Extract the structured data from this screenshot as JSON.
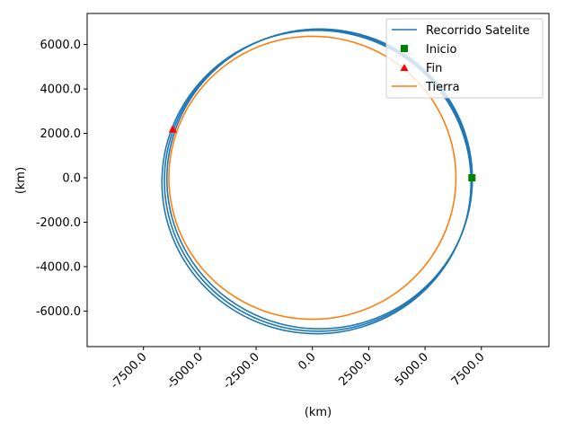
{
  "chart_data": {
    "type": "line",
    "xlabel": "(km)",
    "ylabel": "(km)",
    "xlim": [
      -10000,
      10500
    ],
    "ylim": [
      -7600,
      7400
    ],
    "x_ticks": [
      -7500,
      -5000,
      -2500,
      0,
      2500,
      5000,
      7500
    ],
    "x_tick_labels": [
      "-7500.0",
      "-5000.0",
      "-2500.0",
      "0.0",
      "2500.0",
      "5000.0",
      "7500.0"
    ],
    "y_ticks": [
      -6000,
      -4000,
      -2000,
      0,
      2000,
      4000,
      6000
    ],
    "y_tick_labels": [
      "-6000.0",
      "-4000.0",
      "-2000.0",
      "0.0",
      "2000.0",
      "4000.0",
      "6000.0"
    ],
    "legend_position": "top-right",
    "colors": {
      "satellite": "#1f77b4",
      "earth": "#ff7f0e",
      "start": "#008000",
      "end": "#ff0000"
    },
    "series": [
      {
        "name": "Recorrido Satelite",
        "kind": "line",
        "orbits": [
          {
            "cx": 320,
            "cy": -50,
            "rx": 6780,
            "ry": 6750
          },
          {
            "cx": 250,
            "cy": -120,
            "rx": 6820,
            "ry": 6790
          },
          {
            "cx": 180,
            "cy": -190,
            "rx": 6860,
            "ry": 6830
          }
        ]
      },
      {
        "name": "Inicio",
        "kind": "marker",
        "marker": "square",
        "x": 7080,
        "y": 0
      },
      {
        "name": "Fin",
        "kind": "marker",
        "marker": "triangle",
        "x": -6200,
        "y": 2200
      },
      {
        "name": "Tierra",
        "kind": "line",
        "circle": {
          "cx": 0,
          "cy": 0,
          "r": 6371
        }
      }
    ]
  }
}
